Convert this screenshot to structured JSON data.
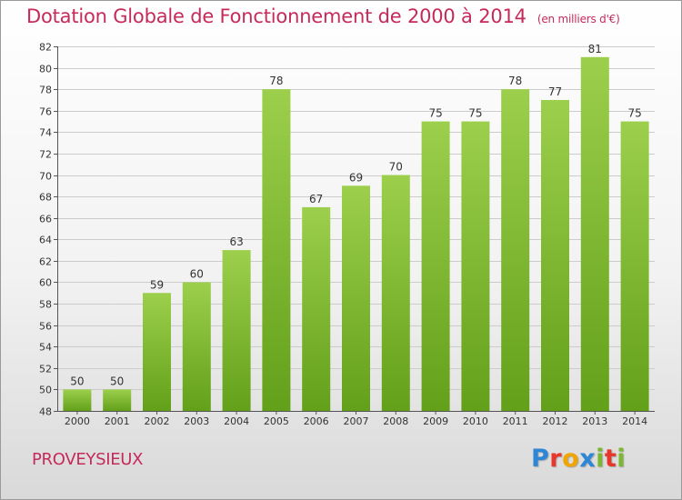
{
  "header": {
    "title": "Dotation Globale de Fonctionnement de 2000 à 2014",
    "subtitle": "(en milliers d'€)"
  },
  "footer": {
    "commune": "PROVEYSIEUX",
    "brand": "Proxiti",
    "brand_letters": [
      {
        "char": "P",
        "color": "#2e86d6"
      },
      {
        "char": "r",
        "color": "#e8372a"
      },
      {
        "char": "o",
        "color": "#f0a500"
      },
      {
        "char": "x",
        "color": "#2e86d6"
      },
      {
        "char": "i",
        "color": "#7cb82f"
      },
      {
        "char": "t",
        "color": "#e8372a"
      },
      {
        "char": "i",
        "color": "#7cb82f"
      }
    ]
  },
  "chart_data": {
    "type": "bar",
    "categories": [
      "2000",
      "2001",
      "2002",
      "2003",
      "2004",
      "2005",
      "2006",
      "2007",
      "2008",
      "2009",
      "2010",
      "2011",
      "2012",
      "2013",
      "2014"
    ],
    "values": [
      50,
      50,
      59,
      60,
      63,
      78,
      67,
      69,
      70,
      75,
      75,
      78,
      77,
      81,
      75
    ],
    "ylim": [
      48,
      82
    ],
    "yticks": [
      48,
      50,
      52,
      54,
      56,
      58,
      60,
      62,
      64,
      66,
      68,
      70,
      72,
      74,
      76,
      78,
      80,
      82
    ],
    "grid": "horizontal",
    "data_labels": true,
    "colors": {
      "bar_top": "#9ccf4c",
      "bar_bottom": "#63a01a",
      "grid": "#cccccc",
      "title": "#c62a5b"
    }
  }
}
